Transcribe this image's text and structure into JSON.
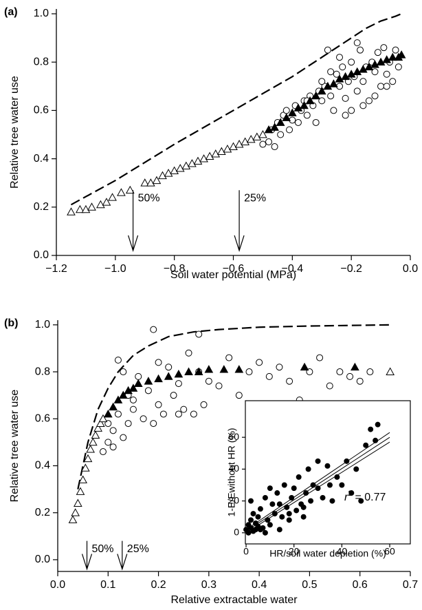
{
  "chart_data": [
    {
      "type": "scatter",
      "panel_label": "(a)",
      "xlabel": "Soil water potential (MPa)",
      "ylabel": "Relative tree water use",
      "xlim": [
        -1.2,
        0.0
      ],
      "ylim": [
        0,
        1.02
      ],
      "xticks": [
        {
          "value": -1.2,
          "label": "−1.2"
        },
        {
          "value": -1.0,
          "label": "−1.0"
        },
        {
          "value": -0.8,
          "label": "−0.8"
        },
        {
          "value": -0.6,
          "label": "−0.6"
        },
        {
          "value": -0.4,
          "label": "−0.4"
        },
        {
          "value": -0.2,
          "label": "−0.2"
        },
        {
          "value": 0.0,
          "label": "0.0"
        }
      ],
      "yticks": [
        {
          "value": 0.0,
          "label": "0.0"
        },
        0.2,
        0.4,
        0.6,
        0.8,
        {
          "value": 1.0,
          "label": "1.0"
        }
      ],
      "series": [
        {
          "marker": "line-dashed",
          "color": "#000000",
          "x": [
            -1.15,
            -1.0,
            -0.8,
            -0.6,
            -0.4,
            -0.3,
            -0.2,
            -0.15,
            -0.1,
            -0.05,
            -0.03
          ],
          "values": [
            0.21,
            0.31,
            0.46,
            0.6,
            0.74,
            0.82,
            0.9,
            0.94,
            0.97,
            0.99,
            1.0
          ]
        },
        {
          "marker": "circle-open",
          "color": "#000000",
          "x": [
            -0.5,
            -0.48,
            -0.47,
            -0.46,
            -0.45,
            -0.44,
            -0.43,
            -0.42,
            -0.41,
            -0.4,
            -0.39,
            -0.38,
            -0.37,
            -0.36,
            -0.35,
            -0.34,
            -0.33,
            -0.32,
            -0.31,
            -0.3,
            -0.29,
            -0.28,
            -0.27,
            -0.26,
            -0.25,
            -0.24,
            -0.23,
            -0.22,
            -0.21,
            -0.2,
            -0.19,
            -0.18,
            -0.17,
            -0.16,
            -0.15,
            -0.14,
            -0.13,
            -0.12,
            -0.11,
            -0.1,
            -0.09,
            -0.08,
            -0.07,
            -0.06,
            -0.05,
            -0.04,
            -0.27,
            -0.24,
            -0.2,
            -0.16,
            -0.12,
            -0.08,
            -0.3,
            -0.35,
            -0.22,
            -0.18
          ],
          "values": [
            0.46,
            0.47,
            0.52,
            0.45,
            0.55,
            0.5,
            0.58,
            0.6,
            0.52,
            0.56,
            0.62,
            0.55,
            0.6,
            0.64,
            0.58,
            0.66,
            0.62,
            0.55,
            0.68,
            0.64,
            0.7,
            0.85,
            0.66,
            0.6,
            0.75,
            0.7,
            0.78,
            0.65,
            0.72,
            0.8,
            0.74,
            0.68,
            0.85,
            0.72,
            0.78,
            0.64,
            0.8,
            0.76,
            0.84,
            0.7,
            0.86,
            0.75,
            0.8,
            0.72,
            0.85,
            0.78,
            0.76,
            0.82,
            0.6,
            0.62,
            0.66,
            0.7,
            0.72,
            0.64,
            0.58,
            0.88
          ]
        },
        {
          "marker": "triangle-open",
          "color": "#000000",
          "x": [
            -1.15,
            -1.12,
            -1.1,
            -1.08,
            -1.05,
            -1.03,
            -1.01,
            -0.98,
            -0.95,
            -0.9,
            -0.88,
            -0.86,
            -0.84,
            -0.82,
            -0.8,
            -0.78,
            -0.76,
            -0.74,
            -0.72,
            -0.7,
            -0.68,
            -0.66,
            -0.64,
            -0.62,
            -0.6,
            -0.58,
            -0.56,
            -0.54,
            -0.52,
            -0.5
          ],
          "values": [
            0.18,
            0.19,
            0.19,
            0.2,
            0.21,
            0.22,
            0.24,
            0.26,
            0.27,
            0.3,
            0.3,
            0.31,
            0.33,
            0.34,
            0.35,
            0.36,
            0.37,
            0.38,
            0.39,
            0.4,
            0.41,
            0.42,
            0.43,
            0.44,
            0.45,
            0.46,
            0.47,
            0.48,
            0.49,
            0.5
          ]
        },
        {
          "marker": "triangle-filled",
          "color": "#000000",
          "x": [
            -0.48,
            -0.46,
            -0.44,
            -0.42,
            -0.4,
            -0.38,
            -0.36,
            -0.34,
            -0.32,
            -0.3,
            -0.28,
            -0.26,
            -0.24,
            -0.22,
            -0.2,
            -0.18,
            -0.16,
            -0.14,
            -0.12,
            -0.1,
            -0.08,
            -0.06,
            -0.04,
            -0.03
          ],
          "values": [
            0.52,
            0.53,
            0.55,
            0.57,
            0.59,
            0.61,
            0.62,
            0.64,
            0.66,
            0.68,
            0.7,
            0.71,
            0.73,
            0.74,
            0.75,
            0.76,
            0.77,
            0.78,
            0.79,
            0.8,
            0.81,
            0.82,
            0.82,
            0.83
          ]
        }
      ],
      "annotations": [
        {
          "label": "50%",
          "x": -0.94,
          "y": [
            0.27,
            0.02
          ]
        },
        {
          "label": "25%",
          "x": -0.58,
          "y": [
            0.27,
            0.02
          ]
        }
      ]
    },
    {
      "type": "scatter",
      "panel_label": "(b)",
      "xlabel": "Relative extractable water",
      "ylabel": "Relative tree water use",
      "xlim": [
        0.0,
        0.7
      ],
      "ylim": [
        -0.05,
        1.02
      ],
      "xticks": [
        {
          "value": 0.0,
          "label": "0.0"
        },
        0.1,
        0.2,
        0.3,
        0.4,
        0.5,
        0.6,
        0.7
      ],
      "yticks": [
        {
          "value": 0.0,
          "label": "0.0"
        },
        0.2,
        0.4,
        0.6,
        0.8,
        {
          "value": 1.0,
          "label": "1.0"
        }
      ],
      "series": [
        {
          "marker": "line-dashed",
          "color": "#000000",
          "x": [
            0.04,
            0.06,
            0.08,
            0.1,
            0.12,
            0.15,
            0.18,
            0.22,
            0.27,
            0.32,
            0.4,
            0.5,
            0.66
          ],
          "values": [
            0.3,
            0.5,
            0.64,
            0.73,
            0.8,
            0.87,
            0.91,
            0.95,
            0.97,
            0.98,
            0.99,
            0.995,
            1.0
          ]
        },
        {
          "marker": "circle-open",
          "color": "#000000",
          "x": [
            0.09,
            0.1,
            0.1,
            0.11,
            0.12,
            0.12,
            0.13,
            0.14,
            0.14,
            0.15,
            0.16,
            0.17,
            0.18,
            0.19,
            0.2,
            0.21,
            0.22,
            0.23,
            0.24,
            0.25,
            0.26,
            0.27,
            0.28,
            0.29,
            0.3,
            0.32,
            0.34,
            0.36,
            0.38,
            0.4,
            0.42,
            0.44,
            0.46,
            0.48,
            0.5,
            0.52,
            0.54,
            0.56,
            0.58,
            0.6,
            0.62,
            0.13,
            0.15,
            0.19,
            0.24,
            0.28,
            0.2,
            0.11
          ],
          "values": [
            0.46,
            0.5,
            0.58,
            0.55,
            0.85,
            0.62,
            0.52,
            0.7,
            0.58,
            0.64,
            0.78,
            0.6,
            0.72,
            0.98,
            0.66,
            0.62,
            0.82,
            0.7,
            0.75,
            0.64,
            0.88,
            0.62,
            0.8,
            0.66,
            0.76,
            0.74,
            0.86,
            0.7,
            0.8,
            0.84,
            0.78,
            0.82,
            0.76,
            0.68,
            0.8,
            0.86,
            0.74,
            0.8,
            0.78,
            0.76,
            0.8,
            0.8,
            0.68,
            0.58,
            0.62,
            0.96,
            0.84,
            0.48
          ]
        },
        {
          "marker": "triangle-open",
          "color": "#000000",
          "x": [
            0.03,
            0.035,
            0.04,
            0.045,
            0.05,
            0.055,
            0.06,
            0.065,
            0.07,
            0.075,
            0.08,
            0.085,
            0.09,
            0.66
          ],
          "values": [
            0.17,
            0.2,
            0.24,
            0.29,
            0.34,
            0.39,
            0.43,
            0.47,
            0.5,
            0.53,
            0.56,
            0.58,
            0.6,
            0.8
          ]
        },
        {
          "marker": "triangle-filled",
          "color": "#000000",
          "x": [
            0.1,
            0.11,
            0.12,
            0.13,
            0.14,
            0.15,
            0.16,
            0.18,
            0.2,
            0.22,
            0.24,
            0.26,
            0.28,
            0.3,
            0.33,
            0.36,
            0.49,
            0.59
          ],
          "values": [
            0.62,
            0.65,
            0.68,
            0.7,
            0.72,
            0.73,
            0.75,
            0.76,
            0.77,
            0.78,
            0.79,
            0.8,
            0.8,
            0.81,
            0.81,
            0.81,
            0.82,
            0.82
          ]
        }
      ],
      "annotations": [
        {
          "label": "50%",
          "x": 0.058,
          "y": [
            0.08,
            -0.04
          ]
        },
        {
          "label": "25%",
          "x": 0.128,
          "y": [
            0.08,
            -0.04
          ]
        }
      ]
    },
    {
      "type": "scatter",
      "inset": true,
      "xlabel": "HR/soil water depletion (%)",
      "ylabel": "1-E/Ewithout HR (%)",
      "xlim": [
        -0.3,
        68.6
      ],
      "ylim": [
        -7,
        83
      ],
      "xticks": [
        0,
        20,
        40,
        60
      ],
      "yticks": [
        0,
        20,
        40,
        60
      ],
      "series": [
        {
          "marker": "circle-filled",
          "color": "#000000",
          "x": [
            0,
            1,
            1,
            2,
            2,
            3,
            3,
            4,
            4,
            5,
            5,
            6,
            7,
            8,
            9,
            10,
            11,
            12,
            13,
            14,
            15,
            16,
            17,
            18,
            19,
            20,
            21,
            22,
            23,
            24,
            25,
            26,
            27,
            28,
            30,
            32,
            34,
            35,
            36,
            38,
            40,
            42,
            44,
            46,
            48,
            50,
            52,
            54,
            55,
            2,
            6,
            10,
            14,
            18,
            24,
            30,
            8
          ],
          "values": [
            2,
            5,
            0,
            8,
            3,
            1,
            12,
            6,
            2,
            10,
            4,
            15,
            3,
            22,
            8,
            5,
            18,
            12,
            25,
            2,
            10,
            30,
            16,
            8,
            22,
            28,
            14,
            35,
            18,
            10,
            25,
            40,
            20,
            30,
            28,
            22,
            42,
            30,
            20,
            35,
            30,
            45,
            25,
            40,
            20,
            55,
            65,
            58,
            68,
            20,
            2,
            28,
            18,
            12,
            16,
            45,
            0
          ]
        },
        {
          "marker": "line-solid",
          "color": "#000000",
          "x": [
            0,
            60
          ],
          "values": [
            2,
            63
          ]
        },
        {
          "marker": "line-solid",
          "color": "#000000",
          "x": [
            0,
            60
          ],
          "values": [
            1,
            60
          ]
        },
        {
          "marker": "line-solid",
          "color": "#000000",
          "x": [
            0,
            60
          ],
          "values": [
            0,
            57
          ]
        }
      ],
      "stat": {
        "italic": "r",
        "sup": "2",
        "text": "= 0.77"
      }
    }
  ]
}
